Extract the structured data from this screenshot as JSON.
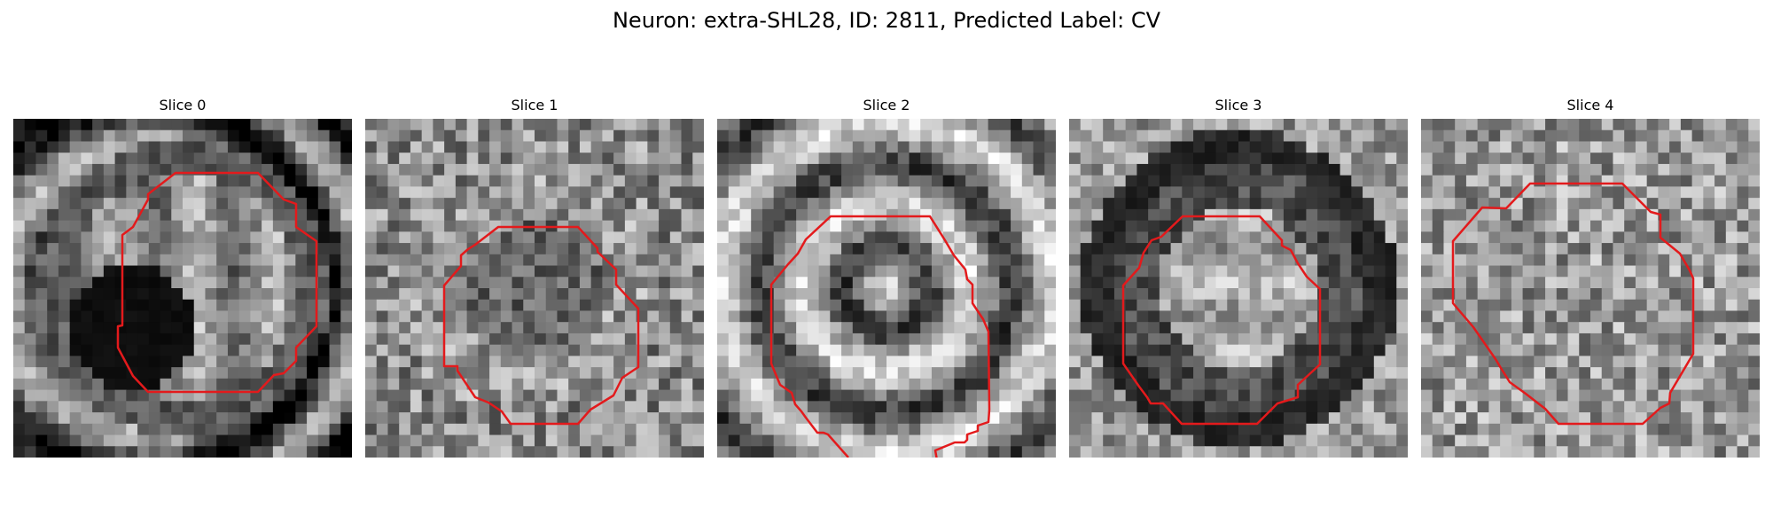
{
  "figure": {
    "title": "Neuron: extra-SHL28, ID: 2811, Predicted Label: CV"
  },
  "panels": [
    {
      "title": "Slice 0",
      "pattern": "dark-nucleus",
      "seed": 11
    },
    {
      "title": "Slice 1",
      "pattern": "speckled-ring",
      "seed": 23
    },
    {
      "title": "Slice 2",
      "pattern": "concentric",
      "seed": 37
    },
    {
      "title": "Slice 3",
      "pattern": "dark-ring-bright-core",
      "seed": 41
    },
    {
      "title": "Slice 4",
      "pattern": "uniform-speckle",
      "seed": 53
    }
  ],
  "colors": {
    "contour": "#e31a1c",
    "background": "#ffffff"
  },
  "rendering": {
    "colormap": "grayscale",
    "contour_shape": "octagon"
  }
}
